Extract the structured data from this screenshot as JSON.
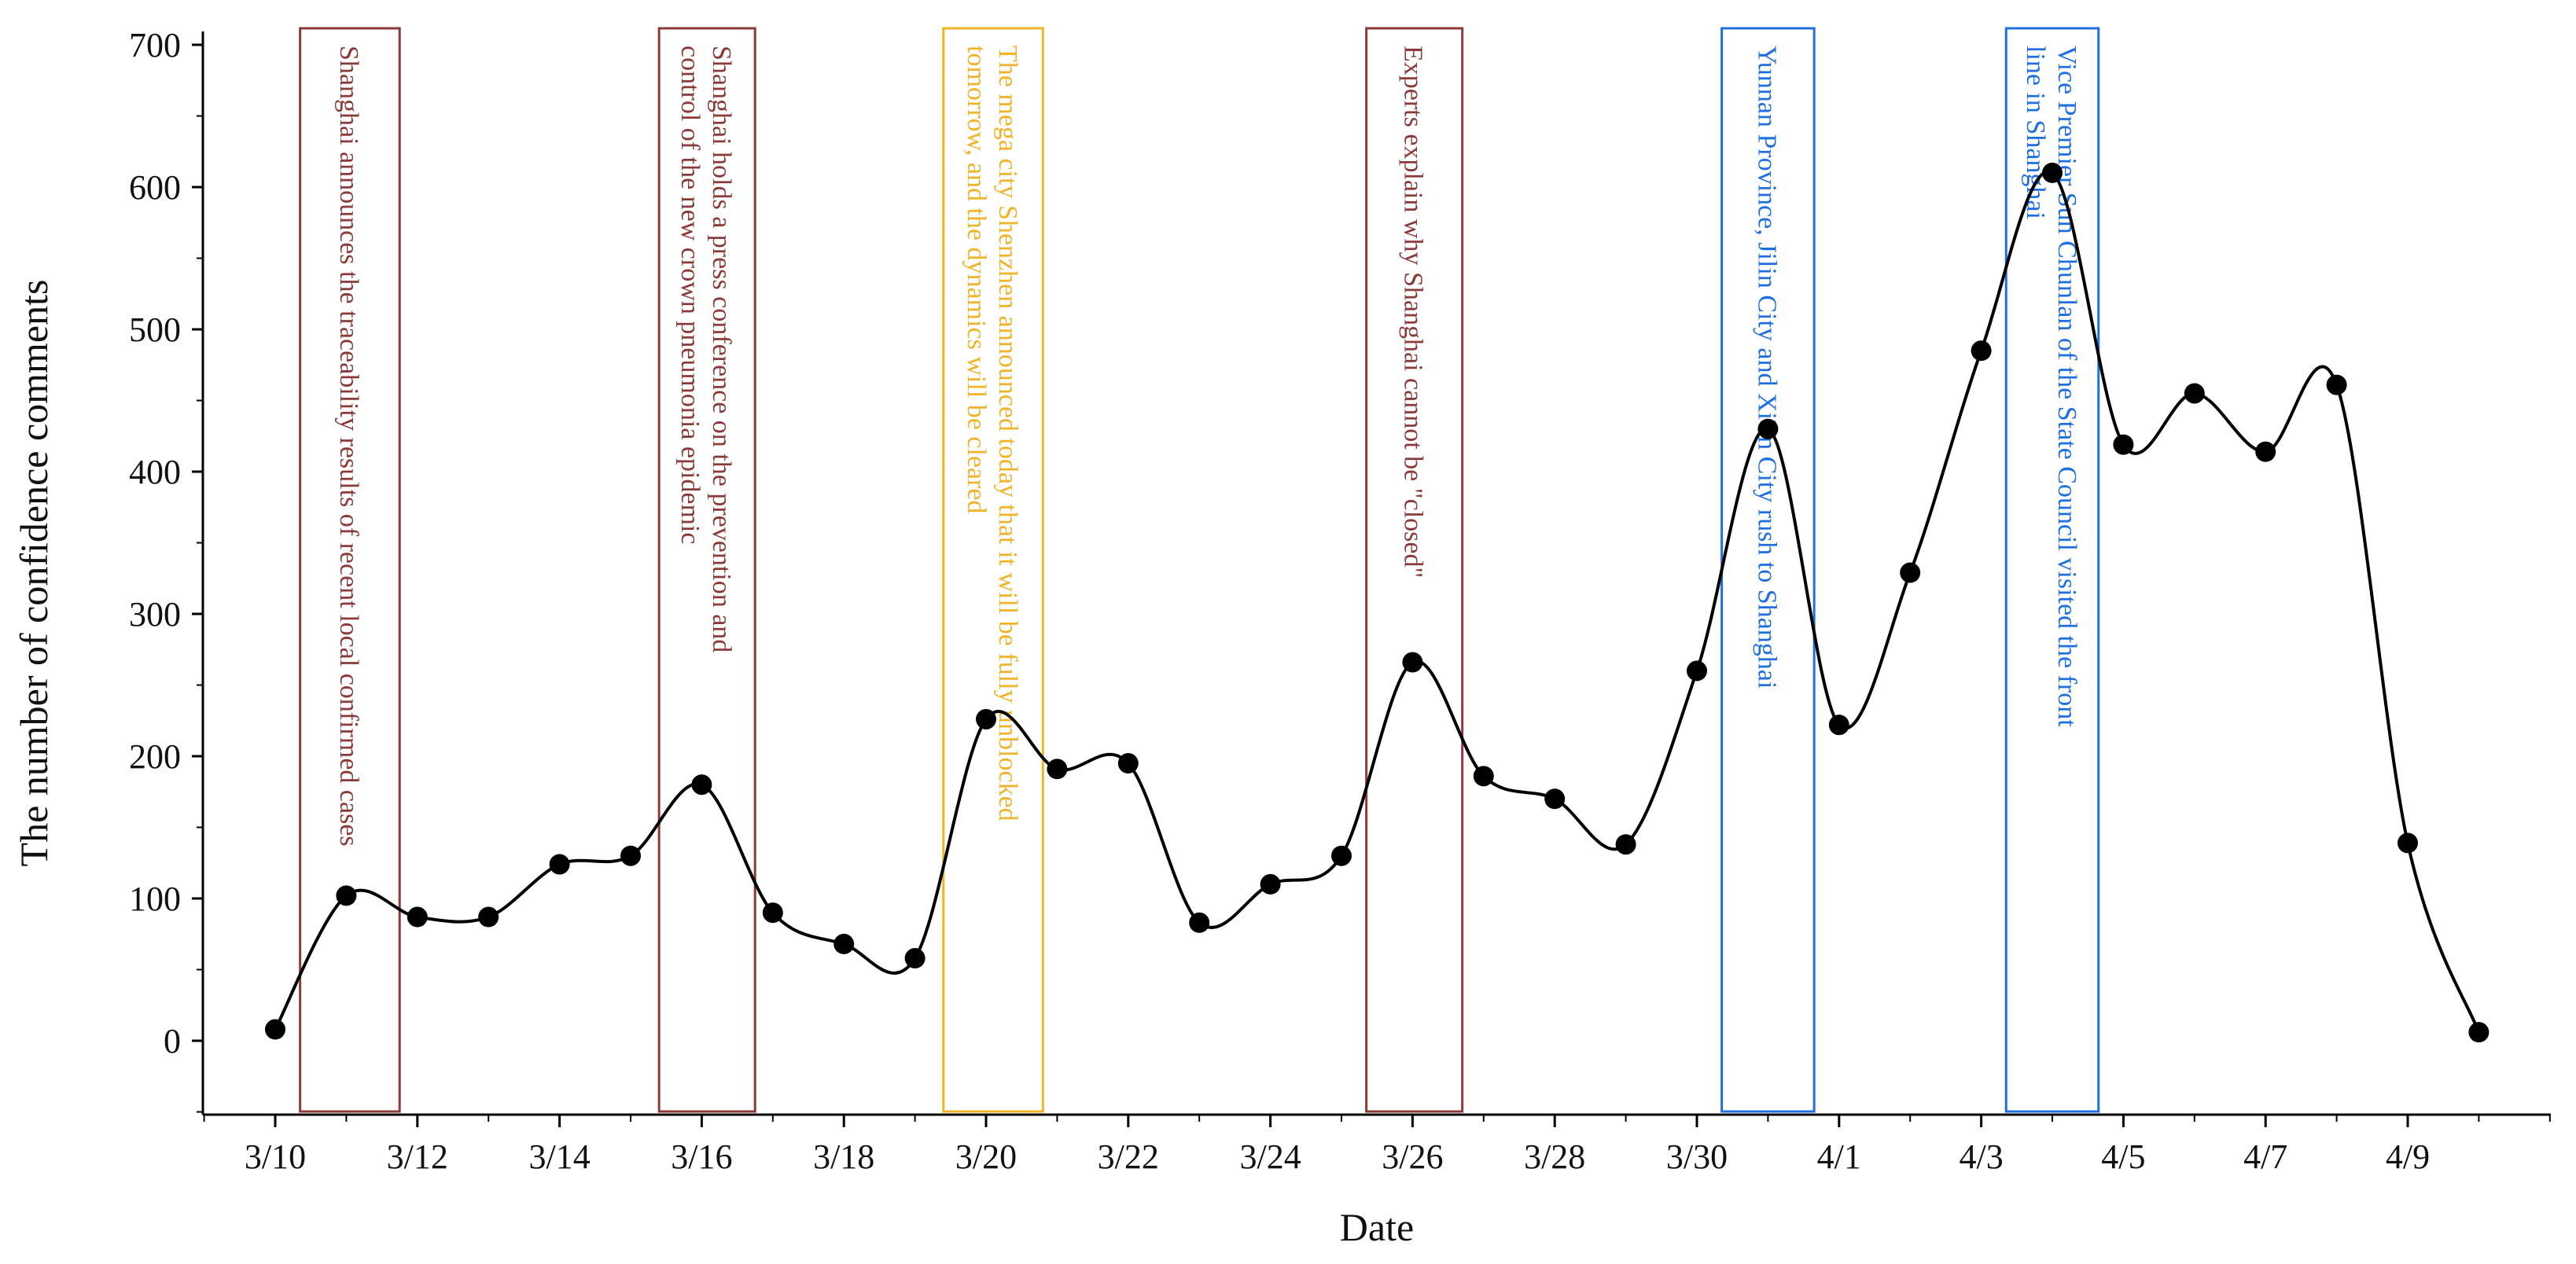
{
  "chart_data": {
    "type": "line",
    "title": "",
    "xlabel": "Date",
    "ylabel": "The number of confidence comments",
    "ylim": [
      -50,
      700
    ],
    "yticks": [
      0,
      100,
      200,
      300,
      400,
      500,
      600,
      700
    ],
    "xlim": [
      -1,
      32
    ],
    "x_tick_labels": [
      "3/10",
      "3/12",
      "3/14",
      "3/16",
      "3/18",
      "3/20",
      "3/22",
      "3/24",
      "3/26",
      "3/28",
      "3/30",
      "4/1",
      "4/3",
      "4/5",
      "4/7",
      "4/9"
    ],
    "x_tick_positions": [
      0,
      2,
      4,
      6,
      8,
      10,
      12,
      14,
      16,
      18,
      20,
      22,
      24,
      26,
      28,
      30
    ],
    "grid": false,
    "series": [
      {
        "name": "confidence comments",
        "color": "#000000",
        "smooth": true,
        "x": [
          0,
          1,
          2,
          3,
          4,
          5,
          6,
          7,
          8,
          9,
          10,
          11,
          12,
          13,
          14,
          15,
          16,
          17,
          18,
          19,
          20,
          21,
          22,
          23,
          24,
          25,
          26,
          27,
          28,
          29,
          30,
          31
        ],
        "values": [
          8,
          102,
          87,
          87,
          124,
          130,
          180,
          90,
          68,
          58,
          226,
          191,
          195,
          83,
          110,
          130,
          266,
          186,
          170,
          138,
          260,
          430,
          222,
          329,
          485,
          610,
          419,
          455,
          414,
          461,
          139,
          6
        ]
      }
    ],
    "annotations": [
      {
        "date_index_start": 0.35,
        "date_index_end": 1.75,
        "color": "#8b3a3a",
        "lines": [
          "Shanghai announces the traceability results of recent local confirmed cases"
        ]
      },
      {
        "date_index_start": 5.4,
        "date_index_end": 6.75,
        "color": "#8b3a3a",
        "lines": [
          "Shanghai holds a press conference on the prevention and",
          "control of the new crown pneumonia epidemic"
        ]
      },
      {
        "date_index_start": 9.4,
        "date_index_end": 10.8,
        "color": "#f0b429",
        "lines": [
          "The mega city Shenzhen announced today that it will be fully unblocked",
          "tomorrow, and the dynamics will be cleared"
        ]
      },
      {
        "date_index_start": 15.35,
        "date_index_end": 16.7,
        "color": "#8b3a3a",
        "lines": [
          "Experts explain why Shanghai cannot be \"closed\""
        ]
      },
      {
        "date_index_start": 20.35,
        "date_index_end": 21.65,
        "color": "#1f6fe0",
        "lines": [
          "Yunnan Province, Jilin City and Xi'an City rush to Shanghai"
        ]
      },
      {
        "date_index_start": 24.35,
        "date_index_end": 25.65,
        "color": "#1f6fe0",
        "lines": [
          "Vice Premier Sun Chunlan of the State Council visited the front",
          "line in Shanghai"
        ]
      }
    ]
  }
}
